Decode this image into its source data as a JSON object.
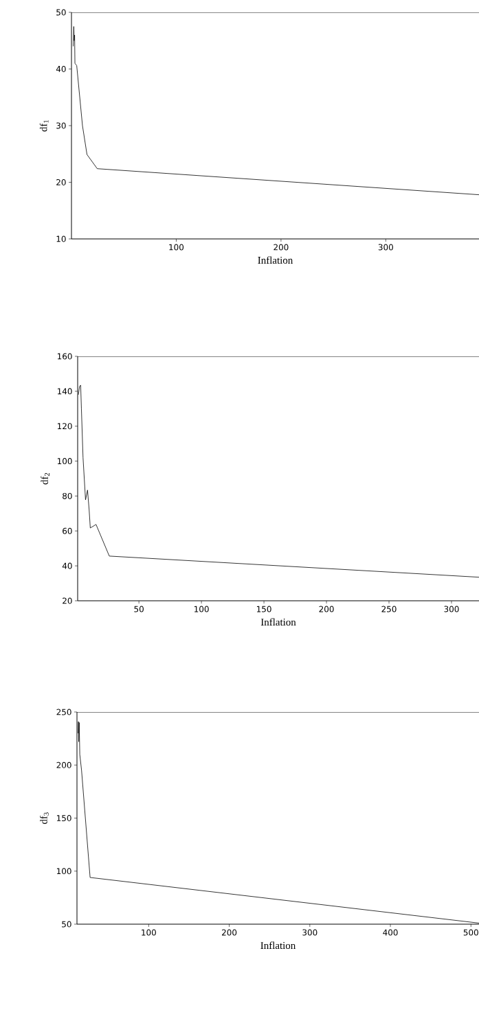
{
  "chart_data": [
    {
      "type": "line",
      "xlabel": "Inflation",
      "ylabel": "df$_{1}$",
      "xlim": [
        0,
        389
      ],
      "ylim": [
        10,
        50
      ],
      "xticks": [
        100,
        200,
        300
      ],
      "yticks": [
        10,
        20,
        30,
        40,
        50
      ],
      "x": [
        1.7,
        2.2,
        2.6,
        3.0,
        3.3,
        5,
        10.5,
        14.8,
        24.6,
        389
      ],
      "series": [
        {
          "color": "#000000",
          "values": [
            44,
            47.5,
            45,
            46,
            41,
            40.6,
            30,
            24.9,
            22.4,
            17.8
          ]
        }
      ]
    },
    {
      "type": "line",
      "xlabel": "Inflation",
      "ylabel": "df$_{2}$",
      "xlim": [
        1,
        322
      ],
      "ylim": [
        20,
        160
      ],
      "xticks": [
        50,
        100,
        150,
        200,
        250,
        300
      ],
      "yticks": [
        20,
        40,
        60,
        80,
        100,
        120,
        140,
        160
      ],
      "x": [
        1.6,
        2.5,
        3.4,
        4.0,
        5.3,
        7.3,
        8.9,
        10.2,
        11.1,
        15.7,
        26.3,
        322
      ],
      "series": [
        {
          "color": "#000000",
          "values": [
            138,
            142.7,
            143.5,
            130,
            102,
            77.8,
            83.4,
            71.9,
            61.7,
            63.7,
            45.6,
            33.5
          ]
        }
      ]
    },
    {
      "type": "line",
      "xlabel": "Inflation",
      "ylabel": "df$_{3}$",
      "xlim": [
        11,
        510
      ],
      "ylim": [
        50,
        250
      ],
      "xticks": [
        100,
        200,
        300,
        400,
        500
      ],
      "yticks": [
        50,
        100,
        150,
        200,
        250
      ],
      "x": [
        12.4,
        12.8,
        13.2,
        13.8,
        14.5,
        16.7,
        27.3,
        510
      ],
      "series": [
        {
          "color": "#000000",
          "values": [
            230,
            241,
            222,
            240,
            210,
            195,
            94,
            51
          ]
        }
      ]
    }
  ]
}
